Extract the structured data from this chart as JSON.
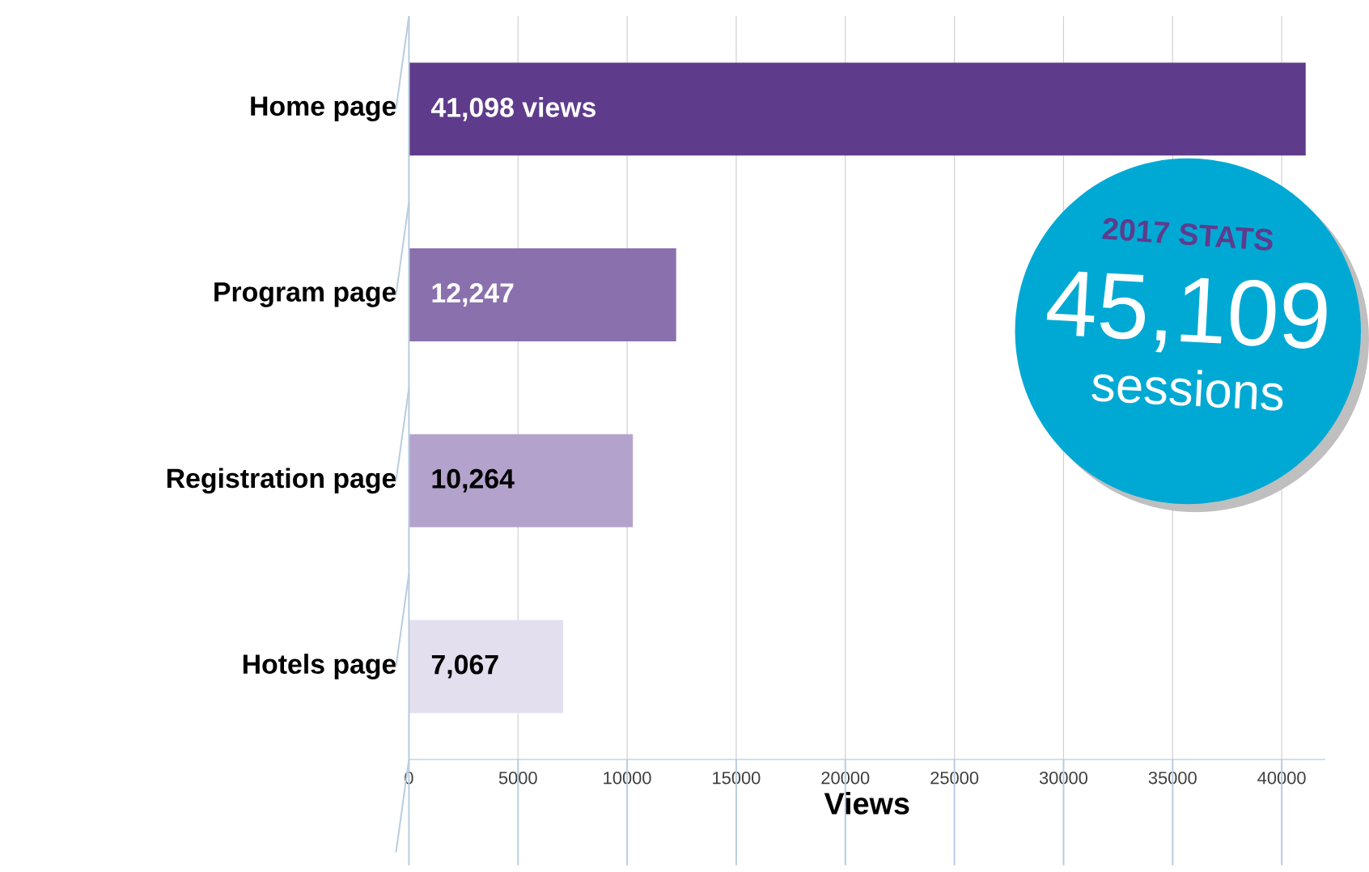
{
  "chart_data": {
    "type": "bar",
    "orientation": "horizontal",
    "xlabel": "Views",
    "categories": [
      "Home page",
      "Program page",
      "Registration page",
      "Hotels page"
    ],
    "values": [
      41098,
      12247,
      10264,
      7067
    ],
    "colors": [
      "#5f3b8c",
      "#8a70ad",
      "#b3a3cc",
      "#e4dfef"
    ],
    "value_labels": [
      "41,098 views",
      "12,247",
      "10,264",
      "7,067"
    ],
    "xlim": [
      0,
      42000
    ],
    "xticks": [
      0,
      5000,
      10000,
      15000,
      20000,
      25000,
      30000,
      35000,
      40000
    ],
    "grid": "x",
    "annotations": [
      "2017 STATS",
      "45,109",
      "sessions"
    ]
  }
}
